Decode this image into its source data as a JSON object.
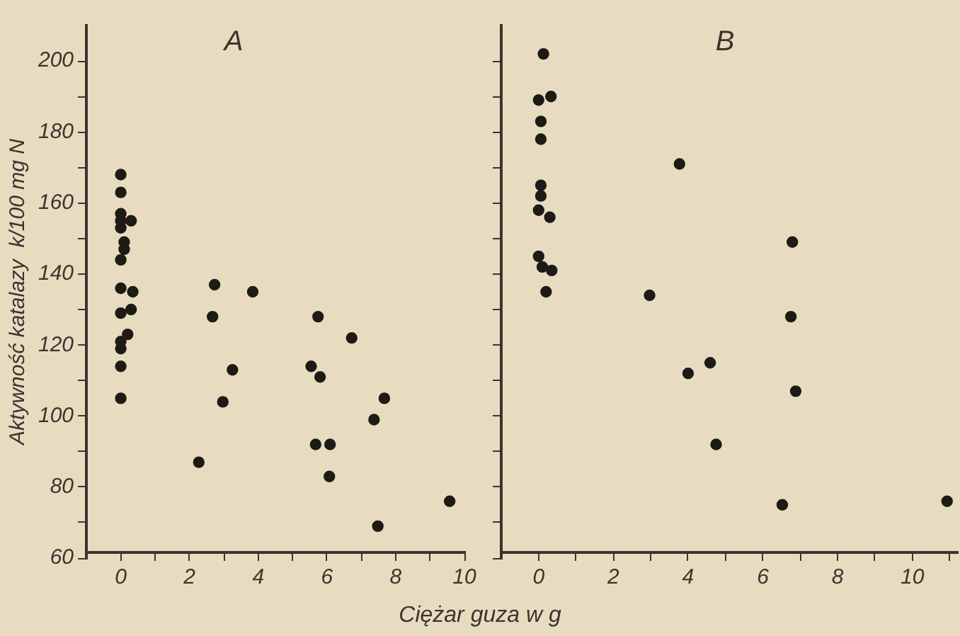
{
  "chart_data": [
    {
      "type": "scatter",
      "title": "A",
      "xlabel": "Ciężar guza w g",
      "ylabel": "Aktywność katalazy  k/100 mg N",
      "marker": "circle",
      "grid": false,
      "legend": false,
      "xlim": [
        -1,
        10
      ],
      "xticks": [
        0,
        {
          "value": 1,
          "label": null
        },
        2,
        {
          "value": 3,
          "label": null
        },
        4,
        {
          "value": 5,
          "label": null
        },
        6,
        {
          "value": 7,
          "label": null
        },
        8,
        {
          "value": 9,
          "label": null
        },
        10
      ],
      "ylim": [
        60,
        210
      ],
      "yticks": [
        60,
        {
          "value": 70,
          "label": null
        },
        80,
        {
          "value": 90,
          "label": null
        },
        100,
        {
          "value": 110,
          "label": null
        },
        120,
        {
          "value": 130,
          "label": null
        },
        140,
        {
          "value": 150,
          "label": null
        },
        160,
        {
          "value": 170,
          "label": null
        },
        180,
        {
          "value": 190,
          "label": null
        },
        200
      ],
      "series": [
        {
          "color": "#1e1a16",
          "x": [
            0,
            0,
            0,
            0,
            0.3,
            0,
            0.1,
            0.1,
            0,
            0,
            0.35,
            0.3,
            0,
            0.2,
            0,
            0,
            0,
            0,
            2.27,
            2.73,
            2.67,
            3.25,
            2.97,
            3.84,
            5.74,
            6.72,
            5.54,
            5.8,
            7.67,
            7.37,
            5.67,
            6.09,
            6.07,
            7.48,
            9.57
          ],
          "values": [
            168,
            163,
            157,
            155,
            155,
            153,
            149,
            147,
            144,
            136,
            135,
            130,
            129,
            123,
            121,
            119,
            114,
            105,
            87,
            137,
            128,
            113,
            104,
            135,
            128,
            122,
            114,
            111,
            105,
            99,
            92,
            92,
            83,
            69,
            76
          ]
        }
      ]
    },
    {
      "type": "scatter",
      "title": "B",
      "tick_labels": "x",
      "marker": "circle",
      "grid": false,
      "legend": false,
      "xlim": [
        -1,
        11.2
      ],
      "xticks": [
        0,
        {
          "value": 1,
          "label": null
        },
        2,
        {
          "value": 3,
          "label": null
        },
        4,
        {
          "value": 5,
          "label": null
        },
        6,
        {
          "value": 7,
          "label": null
        },
        8,
        {
          "value": 9,
          "label": null
        },
        10,
        {
          "value": 11,
          "label": null
        }
      ],
      "ylim": [
        60,
        210
      ],
      "yticks": [
        60,
        {
          "value": 70,
          "label": null
        },
        80,
        {
          "value": 90,
          "label": null
        },
        100,
        {
          "value": 110,
          "label": null
        },
        120,
        {
          "value": 130,
          "label": null
        },
        140,
        {
          "value": 150,
          "label": null
        },
        160,
        {
          "value": 170,
          "label": null
        },
        180,
        {
          "value": 190,
          "label": null
        },
        200
      ],
      "series": [
        {
          "color": "#1e1a16",
          "x": [
            0.13,
            0,
            0.33,
            0.06,
            0.06,
            0.06,
            0.06,
            0,
            0.3,
            0,
            0.1,
            0.35,
            0.2,
            2.97,
            3.77,
            6.79,
            6.75,
            4.59,
            4.0,
            6.88,
            4.75,
            6.52,
            10.93
          ],
          "values": [
            202,
            189,
            190,
            183,
            178,
            165,
            162,
            158,
            156,
            145,
            142,
            141,
            135,
            134,
            171,
            149,
            128,
            115,
            112,
            107,
            92,
            75,
            76
          ]
        }
      ]
    }
  ]
}
